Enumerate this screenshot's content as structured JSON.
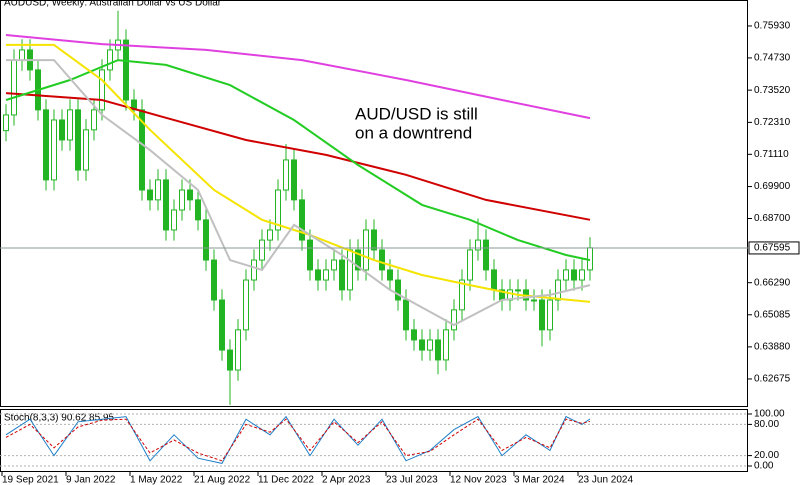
{
  "chart_data": {
    "type": "candlestick",
    "title": "AUDUSD, Weekly:  Australian Dollar vs US Dollar",
    "annotation": [
      "AUD/USD is still",
      "on a downtrend"
    ],
    "annotation_color": "#e01010",
    "candle_color": "#22b422",
    "categories": [
      "19 Sep 2021",
      null,
      null,
      null,
      null,
      null,
      null,
      null,
      "9 Jan 2022",
      null,
      null,
      null,
      null,
      null,
      null,
      null,
      "1 May 2022",
      null,
      null,
      null,
      null,
      null,
      null,
      null,
      "21 Aug 2022",
      null,
      null,
      null,
      null,
      null,
      null,
      null,
      "11 Dec 2022",
      null,
      null,
      null,
      null,
      null,
      null,
      null,
      "2 Apr 2023",
      null,
      null,
      null,
      null,
      null,
      null,
      null,
      "23 Jul 2023",
      null,
      null,
      null,
      null,
      null,
      null,
      null,
      "12 Nov 2023",
      null,
      null,
      null,
      null,
      null,
      null,
      null,
      "3 Mar 2024",
      null,
      null,
      null,
      null,
      null,
      null,
      null,
      "23 Jun 2024",
      null
    ],
    "open": [
      0.72,
      0.7259,
      0.7465,
      0.7503,
      0.7428,
      0.7278,
      0.7015,
      0.724,
      0.7165,
      0.7278,
      0.7052,
      0.7203,
      0.7278,
      0.7428,
      0.7503,
      0.754,
      0.7315,
      0.7278,
      0.6977,
      0.694,
      0.7015,
      0.6827,
      0.6902,
      0.6977,
      0.694,
      0.6865,
      0.6714,
      0.6564,
      0.6376,
      0.6301,
      0.6452,
      0.6639,
      0.6714,
      0.6789,
      0.6827,
      0.6977,
      0.709,
      0.694,
      0.6789,
      0.6677,
      0.6639,
      0.6677,
      0.6714,
      0.6602,
      0.6752,
      0.6677,
      0.6827,
      0.6752,
      0.6677,
      0.6639,
      0.6564,
      0.6452,
      0.6414,
      0.6376,
      0.6414,
      0.6339,
      0.6452,
      0.6527,
      0.6639,
      0.6752,
      0.6789,
      0.6677,
      0.6602,
      0.6564,
      0.6602,
      0.6602,
      0.6564,
      0.6564,
      0.6452,
      0.6564,
      0.6639,
      0.6677,
      0.6639,
      0.6677
    ],
    "high": [
      0.7299,
      0.7505,
      0.7543,
      0.7543,
      0.7468,
      0.7318,
      0.728,
      0.728,
      0.7318,
      0.7318,
      0.7243,
      0.7318,
      0.7468,
      0.7543,
      0.765,
      0.758,
      0.7355,
      0.7318,
      0.7017,
      0.7055,
      0.7055,
      0.6942,
      0.7017,
      0.7017,
      0.698,
      0.6905,
      0.6754,
      0.6604,
      0.6416,
      0.6492,
      0.6679,
      0.6754,
      0.6829,
      0.6867,
      0.7017,
      0.715,
      0.713,
      0.698,
      0.6829,
      0.6717,
      0.6717,
      0.6754,
      0.6754,
      0.6792,
      0.6792,
      0.6867,
      0.6867,
      0.6792,
      0.6717,
      0.6679,
      0.6604,
      0.6492,
      0.6454,
      0.6454,
      0.6454,
      0.6492,
      0.6567,
      0.6679,
      0.6792,
      0.687,
      0.6829,
      0.6717,
      0.6642,
      0.6642,
      0.6642,
      0.6642,
      0.6604,
      0.6604,
      0.6604,
      0.6679,
      0.6717,
      0.6717,
      0.6717,
      0.68
    ],
    "low": [
      0.716,
      0.7219,
      0.7425,
      0.7388,
      0.7238,
      0.6975,
      0.6975,
      0.7125,
      0.7125,
      0.7012,
      0.7012,
      0.7163,
      0.7238,
      0.7388,
      0.7463,
      0.7275,
      0.7238,
      0.6937,
      0.69,
      0.69,
      0.6787,
      0.6787,
      0.6862,
      0.69,
      0.6825,
      0.6674,
      0.6524,
      0.6336,
      0.617,
      0.6261,
      0.6412,
      0.6599,
      0.6674,
      0.6749,
      0.6787,
      0.6937,
      0.69,
      0.6749,
      0.6637,
      0.6599,
      0.6599,
      0.6637,
      0.6562,
      0.6562,
      0.6637,
      0.6637,
      0.6712,
      0.6637,
      0.6599,
      0.6524,
      0.6412,
      0.6374,
      0.6336,
      0.6336,
      0.6285,
      0.6299,
      0.6412,
      0.6487,
      0.6599,
      0.6712,
      0.6637,
      0.6562,
      0.6524,
      0.6524,
      0.6562,
      0.6524,
      0.6524,
      0.639,
      0.6412,
      0.6524,
      0.6599,
      0.6599,
      0.6599,
      0.6637
    ],
    "close": [
      0.7259,
      0.7465,
      0.7503,
      0.7428,
      0.7278,
      0.7015,
      0.724,
      0.7165,
      0.7278,
      0.7052,
      0.7203,
      0.7278,
      0.7428,
      0.7503,
      0.754,
      0.7315,
      0.7278,
      0.6977,
      0.694,
      0.7015,
      0.6827,
      0.6902,
      0.6977,
      0.694,
      0.6865,
      0.6714,
      0.6564,
      0.6376,
      0.6301,
      0.6452,
      0.6639,
      0.6714,
      0.6789,
      0.6827,
      0.6977,
      0.709,
      0.694,
      0.6789,
      0.6677,
      0.6639,
      0.6677,
      0.6714,
      0.6602,
      0.6752,
      0.6677,
      0.6827,
      0.6752,
      0.6677,
      0.6639,
      0.6564,
      0.6452,
      0.6414,
      0.6376,
      0.6414,
      0.6339,
      0.6452,
      0.6527,
      0.6639,
      0.6752,
      0.6789,
      0.6677,
      0.6602,
      0.6564,
      0.6602,
      0.6602,
      0.6564,
      0.6564,
      0.6452,
      0.6564,
      0.6639,
      0.6677,
      0.6639,
      0.6677,
      0.676
    ],
    "moving_averages": [
      {
        "color": "#e040e0",
        "x": [
          0,
          12,
          25,
          37,
          50,
          62,
          73
        ],
        "values": [
          0.7559,
          0.7525,
          0.7503,
          0.7465,
          0.739,
          0.7315,
          0.7247
        ]
      },
      {
        "color": "#d00000",
        "x": [
          0,
          12,
          20,
          30,
          40,
          50,
          60,
          73
        ],
        "values": [
          0.7341,
          0.7315,
          0.7248,
          0.7165,
          0.7109,
          0.7034,
          0.694,
          0.6865
        ]
      },
      {
        "color": "#22cc22",
        "x": [
          0,
          8,
          14,
          20,
          28,
          36,
          44,
          52,
          58,
          64,
          70,
          73
        ],
        "values": [
          0.7315,
          0.739,
          0.7465,
          0.7447,
          0.7371,
          0.724,
          0.7071,
          0.6921,
          0.6865,
          0.6789,
          0.6733,
          0.6714
        ]
      },
      {
        "color": "#f5e400",
        "x": [
          0,
          6,
          12,
          18,
          26,
          32,
          38,
          46,
          52,
          58,
          64,
          73
        ],
        "values": [
          0.7522,
          0.7522,
          0.739,
          0.7203,
          0.6977,
          0.6865,
          0.6808,
          0.6714,
          0.6658,
          0.662,
          0.6583,
          0.6557
        ]
      },
      {
        "color": "#c0c0c0",
        "x": [
          0,
          6,
          12,
          18,
          24,
          28,
          32,
          36,
          42,
          48,
          56,
          62,
          68,
          73
        ],
        "values": [
          0.7465,
          0.7465,
          0.7259,
          0.7127,
          0.6977,
          0.6714,
          0.6677,
          0.6846,
          0.6733,
          0.6602,
          0.647,
          0.6564,
          0.6583,
          0.662
        ]
      }
    ],
    "ylim": [
      0.6166,
      0.7683
    ],
    "yticks": [
      {
        "value": 0.7593,
        "label": "0.75930"
      },
      {
        "value": 0.7473,
        "label": "0.74730"
      },
      {
        "value": 0.7352,
        "label": "0.73520"
      },
      {
        "value": 0.7231,
        "label": "0.72310"
      },
      {
        "value": 0.7111,
        "label": "0.71110"
      },
      {
        "value": 0.699,
        "label": "0.69900"
      },
      {
        "value": 0.687,
        "label": "0.68700"
      },
      {
        "value": 0.6629,
        "label": "0.66290"
      },
      0.65085,
      {
        "value": 0.6388,
        "label": "0.63880"
      },
      0.62675
    ],
    "price_marker": 0.67595,
    "stochastic": {
      "title": "Stoch(8,3,3) 90.62 85.95",
      "ylim": [
        0,
        100
      ],
      "yticks": [
        {
          "value": 100,
          "label": "100.00"
        },
        {
          "value": 80,
          "label": "80.00"
        },
        {
          "value": 20,
          "label": "20.00"
        },
        {
          "value": 0,
          "label": "0.00"
        }
      ],
      "series": [
        {
          "color": "#1f7fc8",
          "x": [
            0,
            3,
            6,
            9,
            12,
            15,
            18,
            21,
            24,
            27,
            30,
            33,
            35,
            38,
            41,
            44,
            47,
            50,
            53,
            56,
            59,
            62,
            65,
            68,
            70,
            72,
            73
          ],
          "values": [
            60,
            90,
            20,
            85,
            90,
            95,
            10,
            60,
            15,
            5,
            90,
            60,
            95,
            20,
            90,
            40,
            90,
            10,
            30,
            70,
            95,
            20,
            60,
            30,
            95,
            80,
            90.62
          ]
        },
        {
          "color": "#d00000",
          "dashed": true,
          "x": [
            0,
            3,
            6,
            9,
            12,
            15,
            18,
            21,
            24,
            27,
            30,
            33,
            35,
            38,
            41,
            44,
            47,
            50,
            53,
            56,
            59,
            62,
            65,
            68,
            70,
            72,
            73
          ],
          "values": [
            55,
            80,
            35,
            75,
            88,
            90,
            25,
            50,
            25,
            10,
            80,
            65,
            90,
            30,
            85,
            45,
            85,
            20,
            28,
            60,
            90,
            30,
            55,
            35,
            90,
            82,
            85.95
          ]
        }
      ]
    }
  }
}
